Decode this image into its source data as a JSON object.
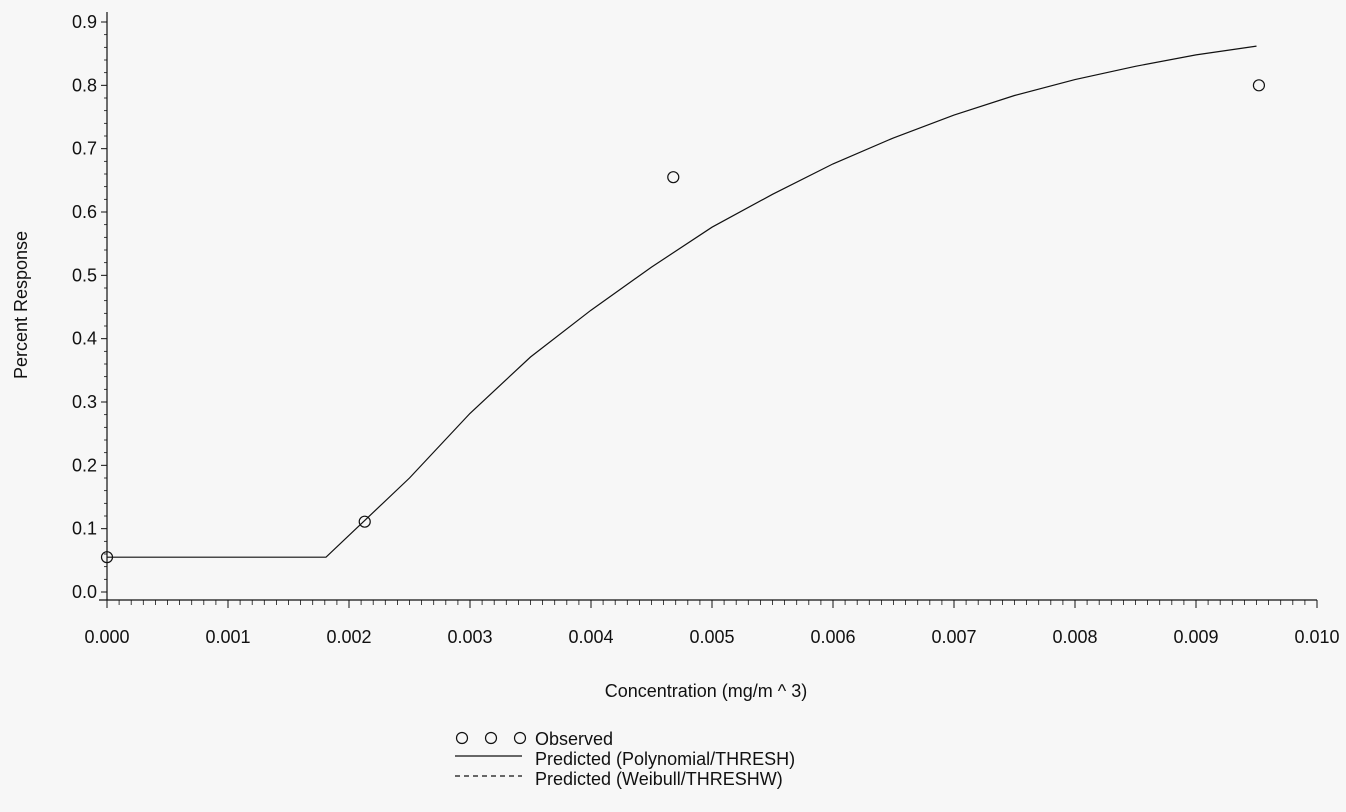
{
  "chart_data": {
    "type": "scatter",
    "title": "",
    "xlabel": "Concentration  (mg/m ^ 3)",
    "ylabel": "Percent  Response",
    "xlim": [
      0.0,
      0.01
    ],
    "ylim": [
      0.0,
      0.9
    ],
    "x_ticks": [
      "0.000",
      "0.001",
      "0.002",
      "0.003",
      "0.004",
      "0.005",
      "0.006",
      "0.007",
      "0.008",
      "0.009",
      "0.010"
    ],
    "y_ticks": [
      "0.0",
      "0.1",
      "0.2",
      "0.3",
      "0.4",
      "0.5",
      "0.6",
      "0.7",
      "0.8",
      "0.9"
    ],
    "grid": false,
    "legend_position": "bottom",
    "series": [
      {
        "name": "Observed",
        "kind": "points",
        "marker": "open-circle",
        "x": [
          0.0,
          0.00213,
          0.00468,
          0.00952
        ],
        "y": [
          0.055,
          0.111,
          0.655,
          0.8
        ]
      },
      {
        "name": "Predicted  (Polynomial/THRESH)",
        "kind": "line",
        "style": "solid",
        "x": [
          0.0,
          0.00181,
          0.0025,
          0.003,
          0.0035,
          0.004,
          0.0045,
          0.005,
          0.0055,
          0.006,
          0.0065,
          0.007,
          0.0075,
          0.008,
          0.0085,
          0.009,
          0.0095
        ],
        "y": [
          0.055,
          0.055,
          0.18,
          0.282,
          0.371,
          0.445,
          0.513,
          0.576,
          0.628,
          0.676,
          0.717,
          0.753,
          0.784,
          0.809,
          0.83,
          0.848,
          0.862
        ]
      },
      {
        "name": "Predicted  (Weibull/THRESHW)",
        "kind": "line",
        "style": "dashed",
        "x": [],
        "y": []
      }
    ]
  },
  "colors": {
    "ink": "#111111",
    "background": "#f7f7f7"
  }
}
